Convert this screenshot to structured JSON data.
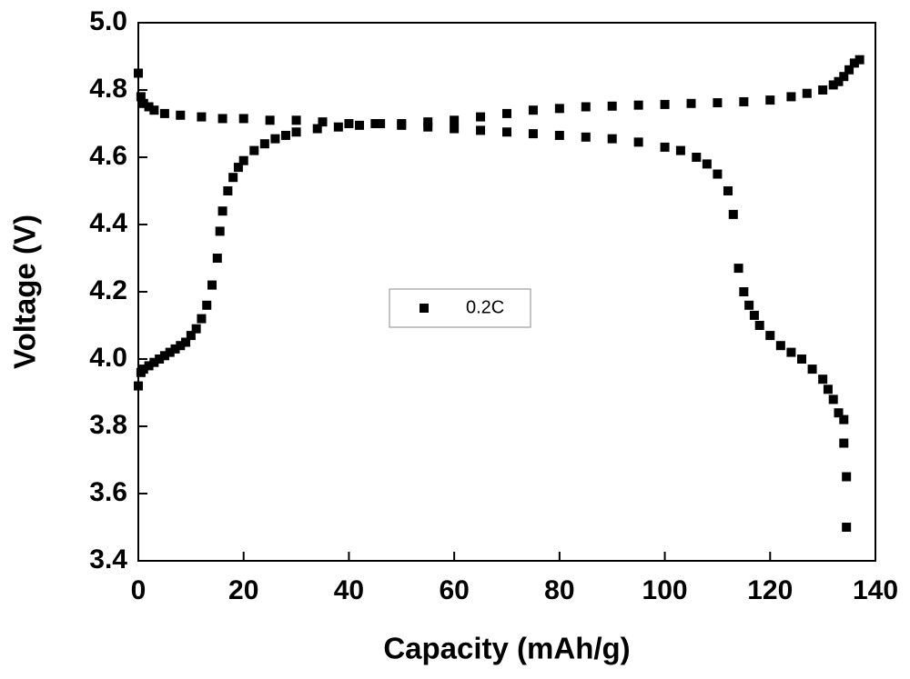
{
  "chart_data": {
    "type": "scatter",
    "xlabel": "Capacity (mAh/g)",
    "ylabel": "Voltage (V)",
    "xlim": [
      0,
      140
    ],
    "ylim": [
      3.4,
      5.0
    ],
    "xticks": [
      0,
      20,
      40,
      60,
      80,
      100,
      120,
      140
    ],
    "yticks": [
      3.4,
      3.6,
      3.8,
      {
        "value": 4,
        "label": "4.0"
      },
      4.2,
      4.4,
      4.6,
      4.8,
      {
        "value": 5,
        "label": "5.0"
      }
    ],
    "legend": "center",
    "series": [
      {
        "name": "0.2C",
        "color": "#000000",
        "x": [
          0,
          0.5,
          1,
          2,
          3,
          4,
          5,
          6,
          7,
          8,
          9,
          10,
          11,
          12,
          13,
          14,
          15,
          15.5,
          16,
          17,
          18,
          19,
          20,
          22,
          24,
          26,
          28,
          30,
          34,
          38,
          42,
          46,
          50,
          55,
          60,
          65,
          70,
          75,
          80,
          85,
          90,
          95,
          100,
          105,
          110,
          115,
          120,
          124,
          127,
          130,
          132,
          133,
          134,
          135,
          136,
          137,
          0,
          0.5,
          1,
          2,
          3,
          5,
          8,
          12,
          16,
          20,
          25,
          30,
          35,
          40,
          45,
          50,
          55,
          60,
          65,
          70,
          75,
          80,
          85,
          90,
          95,
          100,
          103,
          106,
          108,
          110,
          112,
          113,
          114,
          115,
          116,
          117,
          118,
          120,
          122,
          124,
          126,
          128,
          130,
          131,
          132,
          133,
          134,
          134,
          134.5,
          134.5
        ],
        "values": [
          3.92,
          3.96,
          3.97,
          3.98,
          3.99,
          4.0,
          4.01,
          4.02,
          4.03,
          4.04,
          4.05,
          4.07,
          4.09,
          4.12,
          4.16,
          4.22,
          4.3,
          4.38,
          4.44,
          4.5,
          4.54,
          4.57,
          4.59,
          4.62,
          4.64,
          4.655,
          4.665,
          4.675,
          4.685,
          4.69,
          4.695,
          4.7,
          4.7,
          4.705,
          4.71,
          4.72,
          4.73,
          4.74,
          4.745,
          4.75,
          4.752,
          4.755,
          4.757,
          4.76,
          4.762,
          4.765,
          4.77,
          4.78,
          4.79,
          4.8,
          4.815,
          4.825,
          4.84,
          4.86,
          4.88,
          4.89,
          4.85,
          4.78,
          4.76,
          4.75,
          4.74,
          4.73,
          4.725,
          4.72,
          4.715,
          4.715,
          4.71,
          4.71,
          4.705,
          4.7,
          4.7,
          4.695,
          4.69,
          4.685,
          4.68,
          4.675,
          4.67,
          4.665,
          4.66,
          4.655,
          4.645,
          4.63,
          4.62,
          4.6,
          4.58,
          4.55,
          4.5,
          4.43,
          4.27,
          4.2,
          4.16,
          4.13,
          4.1,
          4.07,
          4.04,
          4.02,
          4.0,
          3.97,
          3.94,
          3.91,
          3.88,
          3.84,
          3.82,
          3.75,
          3.65,
          3.5
        ]
      }
    ]
  }
}
